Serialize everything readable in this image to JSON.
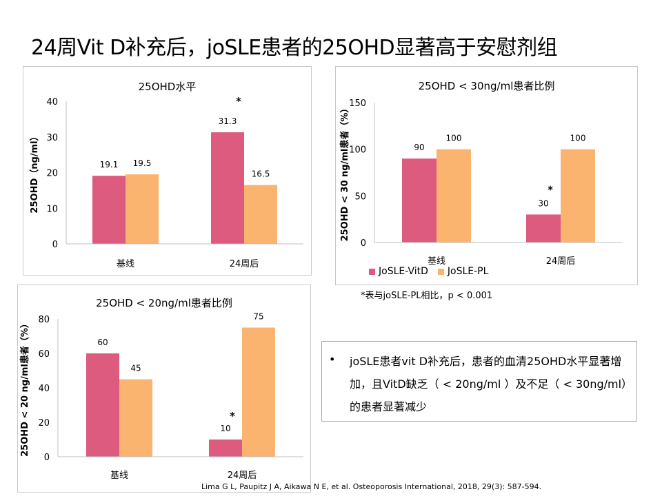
{
  "slide": {
    "title": "24周Vit D补充后，joSLE患者的25OHD显著高于安慰剂组",
    "footnote": "*表与joSLE-PL相比，p < 0.001",
    "callout_bullet": "•",
    "callout_text": "joSLE患者vit D补充后，患者的血清25OHD水平显著增加，且VitD缺乏（ < 20ng/ml ）及不足（ < 30ng/ml）的患者显著减少",
    "reference": "Lima G L, Paupitz J A, Aikawa N E, et al. Osteoporosis International, 2018, 29(3): 587-594."
  },
  "legend": {
    "items": [
      {
        "label": "JoSLE-VitD",
        "color": "#dc5b7f"
      },
      {
        "label": "JoSLE-PL",
        "color": "#fbb370"
      }
    ]
  },
  "chart_data": [
    {
      "type": "bar",
      "title": "25OHD水平",
      "ylabel": "25OHD（ng/ml）",
      "xlabel": "",
      "categories": [
        "基线",
        "24周后"
      ],
      "series": [
        {
          "name": "JoSLE-VitD",
          "values": [
            19.1,
            31.3
          ],
          "labels": [
            "19.1",
            "31.3"
          ],
          "color": "#dc5b7f"
        },
        {
          "name": "JoSLE-PL",
          "values": [
            19.5,
            16.5
          ],
          "labels": [
            "19.5",
            "16.5"
          ],
          "color": "#fbb370"
        }
      ],
      "ylim": [
        0,
        40
      ],
      "yticks": [
        0,
        10,
        20,
        30,
        40
      ],
      "annotations": [
        {
          "text": "*",
          "category": "24周后"
        }
      ],
      "grid": false
    },
    {
      "type": "bar",
      "title": "25OHD < 30ng/ml患者比例",
      "ylabel": "25OHD < 30 ng/ml患者（%）",
      "xlabel": "",
      "categories": [
        "基线",
        "24周后"
      ],
      "series": [
        {
          "name": "JoSLE-VitD",
          "values": [
            90,
            30
          ],
          "labels": [
            "90",
            "30"
          ],
          "color": "#dc5b7f"
        },
        {
          "name": "JoSLE-PL",
          "values": [
            100,
            100
          ],
          "labels": [
            "100",
            "100"
          ],
          "color": "#fbb370"
        }
      ],
      "ylim": [
        0,
        150
      ],
      "yticks": [
        0,
        50,
        100,
        150
      ],
      "annotations": [
        {
          "text": "*",
          "category": "24周后"
        }
      ],
      "legend": "bottom",
      "grid": false
    },
    {
      "type": "bar",
      "title": "25OHD < 20ng/ml患者比例",
      "ylabel": "25OHD < 20 ng/ml患者（%）",
      "xlabel": "",
      "categories": [
        "基线",
        "24周后"
      ],
      "series": [
        {
          "name": "JoSLE-VitD",
          "values": [
            60,
            10
          ],
          "labels": [
            "60",
            "10"
          ],
          "color": "#dc5b7f"
        },
        {
          "name": "JoSLE-PL",
          "values": [
            45,
            75
          ],
          "labels": [
            "45",
            "75"
          ],
          "color": "#fbb370"
        }
      ],
      "ylim": [
        0,
        80
      ],
      "yticks": [
        0,
        20,
        40,
        60,
        80
      ],
      "annotations": [
        {
          "text": "*",
          "category": "24周后"
        }
      ],
      "grid": false
    }
  ]
}
